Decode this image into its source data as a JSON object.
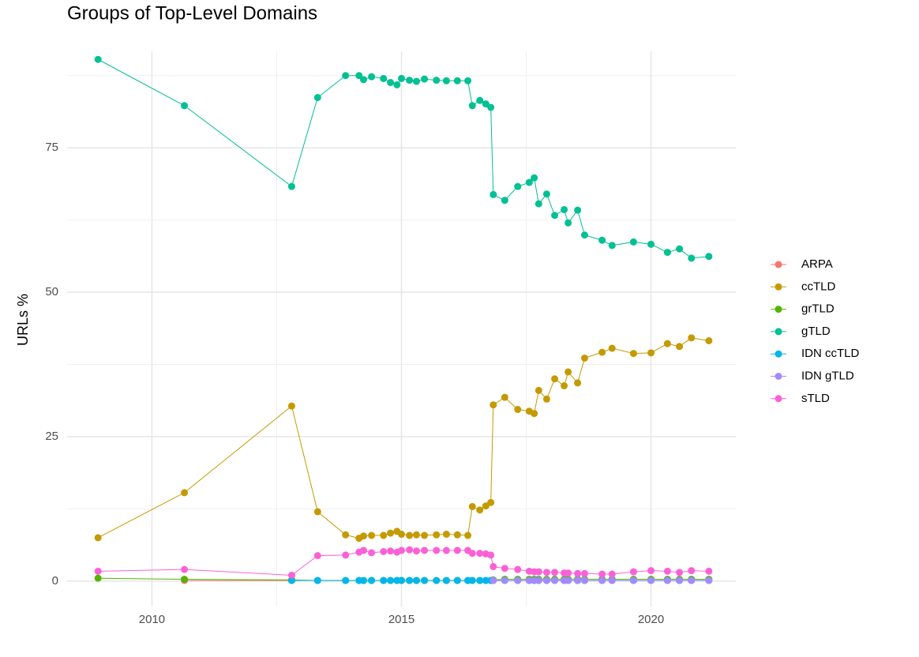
{
  "chart_data": {
    "type": "line",
    "title": "Groups of Top-Level Domains",
    "y_label": "URLs %",
    "x": [
      2008.92,
      2010.65,
      2012.8,
      2013.32,
      2013.88,
      2014.15,
      2014.24,
      2014.4,
      2014.64,
      2014.78,
      2014.91,
      2015.0,
      2015.16,
      2015.3,
      2015.46,
      2015.7,
      2015.9,
      2016.12,
      2016.33,
      2016.42,
      2016.57,
      2016.69,
      2016.79,
      2016.84,
      2017.07,
      2017.33,
      2017.56,
      2017.66,
      2017.75,
      2017.91,
      2018.07,
      2018.26,
      2018.34,
      2018.53,
      2018.67,
      2019.02,
      2019.22,
      2019.65,
      2020.0,
      2020.33,
      2020.57,
      2020.81,
      2021.16
    ],
    "series": [
      {
        "name": "ARPA",
        "color": "#F8766D",
        "values": [
          null,
          0.1,
          0.1,
          null,
          null,
          null,
          null,
          null,
          null,
          null,
          null,
          null,
          null,
          null,
          null,
          null,
          null,
          null,
          null,
          null,
          null,
          null,
          null,
          null,
          null,
          null,
          null,
          null,
          null,
          null,
          null,
          null,
          null,
          null,
          null,
          null,
          null,
          null,
          null,
          null,
          null,
          null,
          null
        ]
      },
      {
        "name": "ccTLD",
        "color": "#C49A00",
        "values": [
          7.5,
          15.3,
          30.3,
          12.0,
          8.0,
          7.4,
          7.8,
          7.9,
          7.9,
          8.3,
          8.6,
          8.1,
          7.9,
          8.0,
          7.9,
          8.0,
          8.1,
          8.0,
          7.9,
          12.9,
          12.3,
          13.0,
          13.6,
          30.5,
          31.8,
          29.7,
          29.4,
          29.0,
          33.0,
          31.5,
          35.0,
          33.8,
          36.2,
          34.3,
          38.6,
          39.6,
          40.3,
          39.4,
          39.5,
          41.1,
          40.6,
          42.1,
          41.6
        ]
      },
      {
        "name": "grTLD",
        "color": "#53B400",
        "values": [
          0.5,
          0.3,
          0.2,
          0.1,
          0.1,
          0.1,
          0.1,
          0.1,
          0.1,
          0.1,
          0.1,
          0.1,
          0.1,
          0.1,
          0.1,
          0.1,
          0.1,
          0.1,
          0.1,
          0.1,
          0.1,
          0.1,
          0.1,
          0.2,
          0.3,
          0.3,
          0.3,
          0.3,
          0.3,
          0.3,
          0.3,
          0.3,
          0.3,
          0.3,
          0.3,
          0.3,
          0.3,
          0.3,
          0.3,
          0.3,
          0.3,
          0.3,
          0.3
        ]
      },
      {
        "name": "gTLD",
        "color": "#00C094",
        "values": [
          90.3,
          82.3,
          68.3,
          83.7,
          87.5,
          87.5,
          86.8,
          87.3,
          87.0,
          86.3,
          85.9,
          87.0,
          86.7,
          86.5,
          86.9,
          86.7,
          86.6,
          86.6,
          86.6,
          82.3,
          83.2,
          82.6,
          82.0,
          66.9,
          65.9,
          68.3,
          69.0,
          69.8,
          65.3,
          67.0,
          63.3,
          64.3,
          62.0,
          64.2,
          59.9,
          59.0,
          58.1,
          58.7,
          58.3,
          56.9,
          57.5,
          55.9,
          56.2
        ]
      },
      {
        "name": "IDN ccTLD",
        "color": "#00B6EB",
        "values": [
          null,
          null,
          0.1,
          0.1,
          0.1,
          0.1,
          0.1,
          0.1,
          0.1,
          0.1,
          0.1,
          0.1,
          0.1,
          0.1,
          0.1,
          0.1,
          0.1,
          0.1,
          0.1,
          0.1,
          0.1,
          0.1,
          0.1,
          0.1,
          0.1,
          0.1,
          0.1,
          0.1,
          0.1,
          0.1,
          0.1,
          0.1,
          0.1,
          0.1,
          0.1,
          0.1,
          0.1,
          0.1,
          0.1,
          0.1,
          0.1,
          0.1,
          0.1
        ]
      },
      {
        "name": "IDN gTLD",
        "color": "#A58AFF",
        "values": [
          null,
          null,
          null,
          null,
          null,
          null,
          null,
          null,
          null,
          null,
          null,
          null,
          null,
          null,
          null,
          null,
          null,
          null,
          null,
          null,
          null,
          null,
          null,
          0.1,
          0.1,
          0.1,
          0.1,
          0.1,
          0.1,
          0.1,
          0.1,
          0.1,
          0.1,
          0.1,
          0.1,
          0.1,
          0.1,
          0.1,
          0.1,
          0.1,
          0.1,
          0.1,
          0.1
        ]
      },
      {
        "name": "sTLD",
        "color": "#FB61D7",
        "values": [
          1.7,
          2.0,
          1.0,
          4.4,
          4.5,
          5.0,
          5.3,
          4.9,
          5.1,
          5.2,
          5.0,
          5.3,
          5.4,
          5.2,
          5.3,
          5.3,
          5.3,
          5.3,
          5.3,
          4.8,
          4.8,
          4.7,
          4.5,
          2.5,
          2.2,
          2.0,
          1.7,
          1.6,
          1.6,
          1.5,
          1.5,
          1.4,
          1.4,
          1.3,
          1.3,
          1.2,
          1.2,
          1.6,
          1.8,
          1.7,
          1.5,
          1.8,
          1.7
        ]
      }
    ],
    "xlim": [
      2008.3,
      2021.7
    ],
    "ylim": [
      -4.4,
      91.7
    ],
    "xticks": [
      2010,
      2015,
      2020
    ],
    "yticks": [
      0,
      25,
      50,
      75
    ],
    "minor_xticks": [
      2012.5,
      2017.5
    ],
    "minor_yticks": [
      12.5,
      37.5,
      62.5,
      87.5
    ],
    "grid": true,
    "legend": "right"
  }
}
